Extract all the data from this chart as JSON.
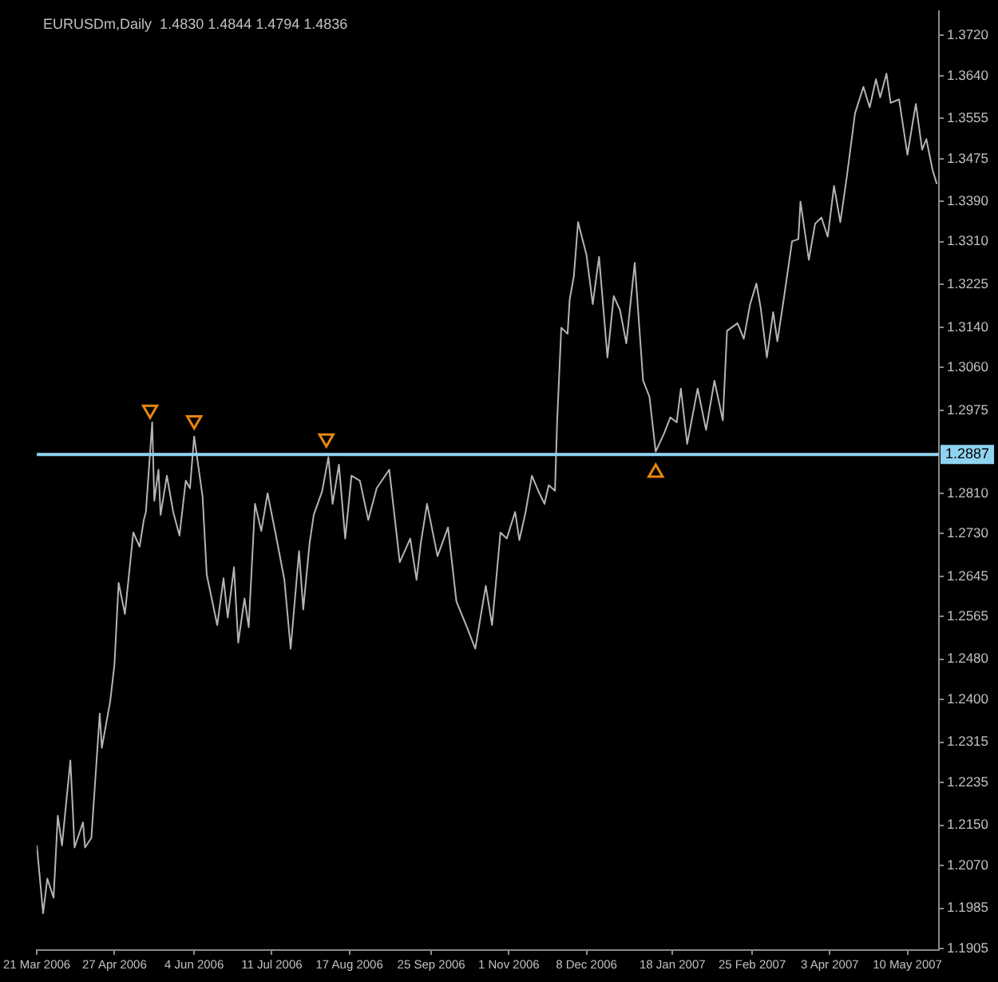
{
  "chart_data": {
    "type": "line",
    "title": "EURUSDm,Daily  1.4830 1.4844 1.4794 1.4836",
    "xlim": [
      "2006-03-21",
      "2007-05-25"
    ],
    "xticks": [
      {
        "value": "2006-03-21",
        "label": "21 Mar 2006"
      },
      {
        "value": "2006-04-27",
        "label": "27 Apr 2006"
      },
      {
        "value": "2006-06-04",
        "label": "4 Jun 2006"
      },
      {
        "value": "2006-07-11",
        "label": "11 Jul 2006"
      },
      {
        "value": "2006-08-17",
        "label": "17 Aug 2006"
      },
      {
        "value": "2006-09-25",
        "label": "25 Sep 2006"
      },
      {
        "value": "2006-11-01",
        "label": "1 Nov 2006"
      },
      {
        "value": "2006-12-08",
        "label": "8 Dec 2006"
      },
      {
        "value": "2007-01-18",
        "label": "18 Jan 2007"
      },
      {
        "value": "2007-02-25",
        "label": "25 Feb 2007"
      },
      {
        "value": "2007-04-03",
        "label": "3 Apr 2007"
      },
      {
        "value": "2007-05-10",
        "label": "10 May 2007"
      }
    ],
    "ylim": [
      1.1902,
      1.3768
    ],
    "yticks": [
      {
        "value": 1.372,
        "label": "1.3720"
      },
      {
        "value": 1.364,
        "label": "1.3640"
      },
      1.3555,
      1.3475,
      {
        "value": 1.339,
        "label": "1.3390"
      },
      {
        "value": 1.331,
        "label": "1.3310"
      },
      1.3225,
      {
        "value": 1.314,
        "label": "1.3140"
      },
      {
        "value": 1.306,
        "label": "1.3060"
      },
      1.2975,
      {
        "value": 1.281,
        "label": "1.2810"
      },
      {
        "value": 1.273,
        "label": "1.2730"
      },
      1.2645,
      1.2565,
      {
        "value": 1.248,
        "label": "1.2480"
      },
      {
        "value": 1.24,
        "label": "1.2400"
      },
      1.2315,
      1.2235,
      {
        "value": 1.215,
        "label": "1.2150"
      },
      {
        "value": 1.207,
        "label": "1.2070"
      },
      1.1985,
      1.1905
    ],
    "grid": false,
    "legend": false,
    "ref_lines": [
      {
        "axis": "y",
        "value": 1.2887,
        "label": "1.2887",
        "color": "#8fd3f0"
      }
    ],
    "series": [
      {
        "color": "#b4b4b4",
        "marker": "none",
        "line_style": "solid",
        "x": [
          "2006-03-21",
          "2006-03-24",
          "2006-03-26",
          "2006-03-29",
          "2006-03-31",
          "2006-04-02",
          "2006-04-06",
          "2006-04-08",
          "2006-04-12",
          "2006-04-13",
          "2006-04-16",
          "2006-04-20",
          "2006-04-21",
          "2006-04-25",
          "2006-04-27",
          "2006-04-29",
          "2006-05-02",
          "2006-05-06",
          "2006-05-09",
          "2006-05-11",
          "2006-05-12",
          "2006-05-15",
          "2006-05-16",
          "2006-05-18",
          "2006-05-19",
          "2006-05-22",
          "2006-05-25",
          "2006-05-28",
          "2006-05-31",
          "2006-06-02",
          "2006-06-04",
          "2006-06-08",
          "2006-06-10",
          "2006-06-15",
          "2006-06-18",
          "2006-06-20",
          "2006-06-23",
          "2006-06-25",
          "2006-06-28",
          "2006-06-30",
          "2006-07-03",
          "2006-07-06",
          "2006-07-09",
          "2006-07-13",
          "2006-07-17",
          "2006-07-20",
          "2006-07-24",
          "2006-07-26",
          "2006-07-29",
          "2006-07-31",
          "2006-08-04",
          "2006-08-07",
          "2006-08-09",
          "2006-08-12",
          "2006-08-15",
          "2006-08-18",
          "2006-08-22",
          "2006-08-26",
          "2006-08-30",
          "2006-09-05",
          "2006-09-10",
          "2006-09-15",
          "2006-09-18",
          "2006-09-20",
          "2006-09-23",
          "2006-09-28",
          "2006-10-03",
          "2006-10-07",
          "2006-10-12",
          "2006-10-16",
          "2006-10-21",
          "2006-10-24",
          "2006-10-28",
          "2006-10-31",
          "2006-11-04",
          "2006-11-06",
          "2006-11-09",
          "2006-11-12",
          "2006-11-15",
          "2006-11-18",
          "2006-11-20",
          "2006-11-23",
          "2006-11-24",
          "2006-11-26",
          "2006-11-29",
          "2006-11-30",
          "2006-12-02",
          "2006-12-04",
          "2006-12-08",
          "2006-12-11",
          "2006-12-14",
          "2006-12-18",
          "2006-12-21",
          "2006-12-24",
          "2006-12-27",
          "2006-12-31",
          "2007-01-04",
          "2007-01-07",
          "2007-01-10",
          "2007-01-14",
          "2007-01-17",
          "2007-01-20",
          "2007-01-22",
          "2007-01-25",
          "2007-01-30",
          "2007-02-03",
          "2007-02-07",
          "2007-02-11",
          "2007-02-13",
          "2007-02-18",
          "2007-02-21",
          "2007-02-24",
          "2007-02-27",
          "2007-03-01",
          "2007-03-04",
          "2007-03-07",
          "2007-03-09",
          "2007-03-12",
          "2007-03-16",
          "2007-03-19",
          "2007-03-20",
          "2007-03-24",
          "2007-03-27",
          "2007-03-30",
          "2007-04-02",
          "2007-04-05",
          "2007-04-08",
          "2007-04-11",
          "2007-04-15",
          "2007-04-19",
          "2007-04-22",
          "2007-04-25",
          "2007-04-27",
          "2007-04-30",
          "2007-05-02",
          "2007-05-06",
          "2007-05-10",
          "2007-05-12",
          "2007-05-14",
          "2007-05-17",
          "2007-05-19",
          "2007-05-22",
          "2007-05-24"
        ],
        "values": [
          1.211,
          1.1975,
          1.2044,
          1.2006,
          1.2169,
          1.211,
          1.2279,
          1.2106,
          1.2156,
          1.2106,
          1.2125,
          1.2372,
          1.2304,
          1.2397,
          1.2469,
          1.2632,
          1.257,
          1.2732,
          1.2704,
          1.2757,
          1.2773,
          1.2951,
          1.2795,
          1.2857,
          1.2767,
          1.2845,
          1.2773,
          1.2726,
          1.2835,
          1.282,
          1.2923,
          1.2804,
          1.2648,
          1.2548,
          1.2641,
          1.2563,
          1.2663,
          1.2513,
          1.2601,
          1.2544,
          1.2789,
          1.2735,
          1.281,
          1.2726,
          1.2638,
          1.2501,
          1.2695,
          1.2579,
          1.271,
          1.2767,
          1.2814,
          1.2882,
          1.2789,
          1.2867,
          1.272,
          1.2845,
          1.2835,
          1.2757,
          1.282,
          1.2857,
          1.2673,
          1.272,
          1.2638,
          1.271,
          1.2789,
          1.2685,
          1.2742,
          1.2595,
          1.2544,
          1.2501,
          1.2626,
          1.2548,
          1.2732,
          1.272,
          1.2773,
          1.2717,
          1.2773,
          1.2845,
          1.2815,
          1.2789,
          1.2826,
          1.2815,
          1.2951,
          1.3139,
          1.3127,
          1.3195,
          1.3242,
          1.3349,
          1.3284,
          1.3186,
          1.328,
          1.308,
          1.3202,
          1.3174,
          1.3108,
          1.3268,
          1.3034,
          1.3002,
          1.2893,
          1.2929,
          1.2961,
          1.2951,
          1.3018,
          1.2908,
          1.3018,
          1.2936,
          1.3034,
          1.2955,
          1.3133,
          1.3148,
          1.3117,
          1.3186,
          1.3227,
          1.318,
          1.308,
          1.317,
          1.3112,
          1.3195,
          1.3311,
          1.3315,
          1.339,
          1.3274,
          1.3346,
          1.3358,
          1.332,
          1.3421,
          1.3349,
          1.3436,
          1.3565,
          1.3618,
          1.3577,
          1.3633,
          1.3597,
          1.3644,
          1.3586,
          1.3593,
          1.3483,
          1.3534,
          1.3584,
          1.3493,
          1.3514,
          1.3452,
          1.3425
        ]
      },
      {
        "type": "scatter",
        "color": "#e8870e",
        "marker": "triangle",
        "x": [
          "2006-05-14",
          "2006-06-04",
          "2006-08-06",
          "2007-01-10"
        ],
        "values": [
          1.2976,
          1.2955,
          1.2919,
          1.2851
        ]
      }
    ]
  }
}
